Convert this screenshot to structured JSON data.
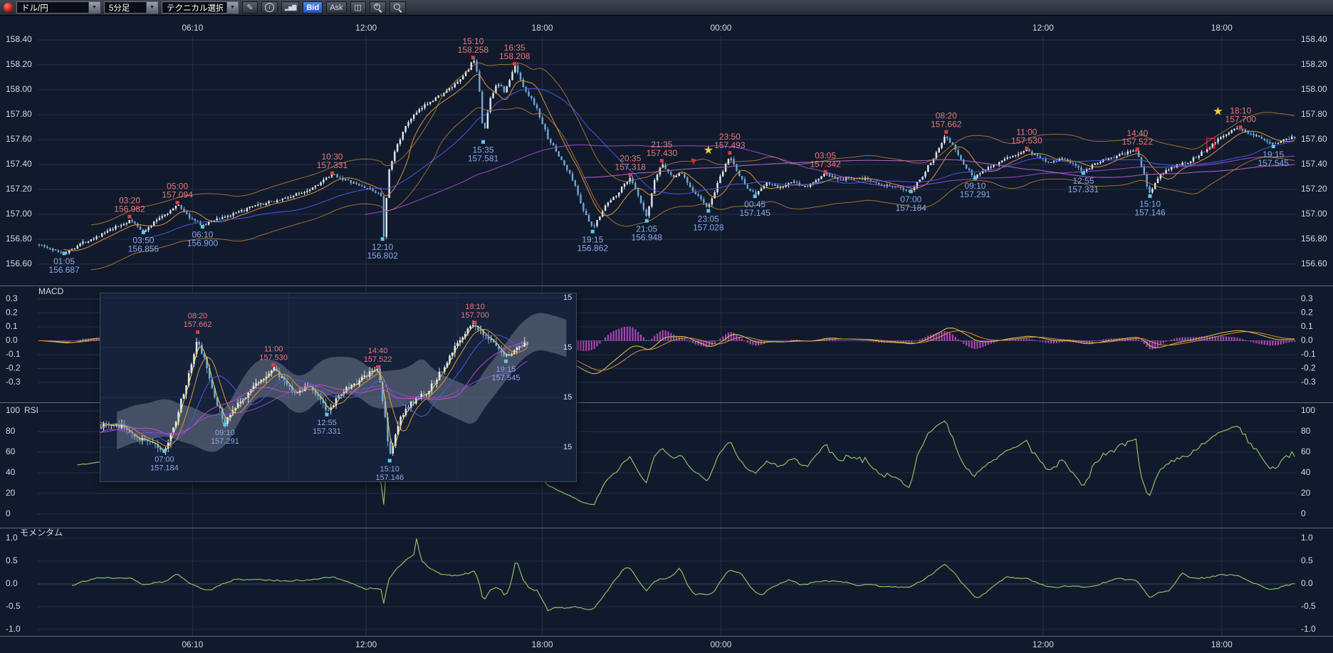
{
  "toolbar": {
    "pair": "ドル/円",
    "timeframe": "5分足",
    "technical": "テクニカル選択",
    "bid": "Bid",
    "ask": "Ask"
  },
  "icons": {
    "dropdown_arrow": "▼",
    "pencil": "✎",
    "info": "i",
    "bar_chart": "▂▅▇",
    "candle": "◫",
    "zoom_plus": "+"
  },
  "panels": {
    "macd": "MACD",
    "rsi": "RSI",
    "momentum": "モメンタム"
  },
  "axes": {
    "times": [
      {
        "label": "06:10",
        "f": 0.123
      },
      {
        "label": "12:00",
        "f": 0.261
      },
      {
        "label": "18:00",
        "f": 0.401
      },
      {
        "label": "00:00",
        "f": 0.543
      },
      {
        "label": "12:00",
        "f": 0.799
      },
      {
        "label": "18:00",
        "f": 0.941
      }
    ],
    "price_ticks": [
      "158.40",
      "158.20",
      "158.00",
      "157.80",
      "157.60",
      "157.40",
      "157.20",
      "157.00",
      "156.80",
      "156.60"
    ],
    "macd_ticks": [
      "0.3",
      "0.2",
      "0.1",
      "0.0",
      "-0.1",
      "-0.2",
      "-0.3"
    ],
    "rsi_ticks": [
      "100",
      "80",
      "60",
      "40",
      "20",
      "0"
    ],
    "momentum_ticks": [
      "1.0",
      "0.5",
      "0.0",
      "-0.5",
      "-1.0"
    ]
  },
  "chart_data": {
    "type": "candlestick",
    "symbol": "ドル/円",
    "interval": "5分足",
    "y_range": [
      156.6,
      158.4
    ],
    "price_path": [
      [
        0.0,
        156.76
      ],
      [
        0.008,
        156.72
      ],
      [
        0.021,
        156.69
      ],
      [
        0.032,
        156.76
      ],
      [
        0.05,
        156.84
      ],
      [
        0.062,
        156.9
      ],
      [
        0.073,
        156.95
      ],
      [
        0.08,
        156.89
      ],
      [
        0.084,
        156.86
      ],
      [
        0.095,
        156.97
      ],
      [
        0.105,
        157.03
      ],
      [
        0.111,
        157.08
      ],
      [
        0.118,
        156.99
      ],
      [
        0.125,
        156.94
      ],
      [
        0.131,
        156.91
      ],
      [
        0.14,
        156.96
      ],
      [
        0.155,
        157.0
      ],
      [
        0.17,
        157.06
      ],
      [
        0.185,
        157.1
      ],
      [
        0.2,
        157.14
      ],
      [
        0.215,
        157.2
      ],
      [
        0.228,
        157.28
      ],
      [
        0.234,
        157.32
      ],
      [
        0.245,
        157.27
      ],
      [
        0.258,
        157.22
      ],
      [
        0.268,
        157.18
      ],
      [
        0.2727,
        157.15
      ],
      [
        0.2745,
        156.81
      ],
      [
        0.278,
        157.32
      ],
      [
        0.285,
        157.56
      ],
      [
        0.295,
        157.76
      ],
      [
        0.31,
        157.9
      ],
      [
        0.322,
        157.97
      ],
      [
        0.334,
        158.06
      ],
      [
        0.342,
        158.17
      ],
      [
        0.346,
        158.24
      ],
      [
        0.35,
        158.08
      ],
      [
        0.354,
        157.62
      ],
      [
        0.359,
        157.92
      ],
      [
        0.365,
        158.06
      ],
      [
        0.371,
        157.98
      ],
      [
        0.379,
        158.19
      ],
      [
        0.386,
        158.02
      ],
      [
        0.395,
        157.88
      ],
      [
        0.405,
        157.62
      ],
      [
        0.415,
        157.45
      ],
      [
        0.425,
        157.28
      ],
      [
        0.434,
        157.02
      ],
      [
        0.441,
        156.88
      ],
      [
        0.45,
        157.06
      ],
      [
        0.46,
        157.16
      ],
      [
        0.466,
        157.24
      ],
      [
        0.471,
        157.3
      ],
      [
        0.478,
        157.12
      ],
      [
        0.484,
        156.97
      ],
      [
        0.49,
        157.26
      ],
      [
        0.496,
        157.41
      ],
      [
        0.504,
        157.3
      ],
      [
        0.512,
        157.33
      ],
      [
        0.52,
        157.2
      ],
      [
        0.527,
        157.12
      ],
      [
        0.533,
        157.05
      ],
      [
        0.541,
        157.26
      ],
      [
        0.55,
        157.47
      ],
      [
        0.557,
        157.32
      ],
      [
        0.564,
        157.22
      ],
      [
        0.57,
        157.16
      ],
      [
        0.58,
        157.25
      ],
      [
        0.59,
        157.21
      ],
      [
        0.6,
        157.26
      ],
      [
        0.612,
        157.22
      ],
      [
        0.62,
        157.28
      ],
      [
        0.626,
        157.33
      ],
      [
        0.636,
        157.27
      ],
      [
        0.648,
        157.3
      ],
      [
        0.66,
        157.28
      ],
      [
        0.672,
        157.24
      ],
      [
        0.683,
        157.21
      ],
      [
        0.694,
        157.19
      ],
      [
        0.703,
        157.3
      ],
      [
        0.712,
        157.45
      ],
      [
        0.722,
        157.64
      ],
      [
        0.729,
        157.53
      ],
      [
        0.737,
        157.39
      ],
      [
        0.745,
        157.3
      ],
      [
        0.756,
        157.38
      ],
      [
        0.768,
        157.43
      ],
      [
        0.778,
        157.48
      ],
      [
        0.786,
        157.52
      ],
      [
        0.794,
        157.47
      ],
      [
        0.804,
        157.42
      ],
      [
        0.816,
        157.45
      ],
      [
        0.824,
        157.4
      ],
      [
        0.831,
        157.34
      ],
      [
        0.843,
        157.42
      ],
      [
        0.857,
        157.46
      ],
      [
        0.868,
        157.5
      ],
      [
        0.874,
        157.51
      ],
      [
        0.879,
        157.36
      ],
      [
        0.884,
        157.16
      ],
      [
        0.892,
        157.31
      ],
      [
        0.903,
        157.38
      ],
      [
        0.915,
        157.42
      ],
      [
        0.927,
        157.5
      ],
      [
        0.938,
        157.6
      ],
      [
        0.948,
        157.66
      ],
      [
        0.956,
        157.69
      ],
      [
        0.965,
        157.65
      ],
      [
        0.974,
        157.61
      ],
      [
        0.982,
        157.56
      ],
      [
        0.991,
        157.6
      ],
      [
        1.0,
        157.62
      ]
    ],
    "annotations_high": [
      {
        "time": "03:20",
        "price": "156.982",
        "f": 0.073
      },
      {
        "time": "05:00",
        "price": "157.094",
        "f": 0.111
      },
      {
        "time": "10:30",
        "price": "157.331",
        "f": 0.234
      },
      {
        "time": "15:10",
        "price": "158.258",
        "f": 0.346
      },
      {
        "time": "16:35",
        "price": "158.208",
        "f": 0.379
      },
      {
        "time": "20:35",
        "price": "157.318",
        "f": 0.471
      },
      {
        "time": "21:35",
        "price": "157.430",
        "f": 0.496
      },
      {
        "time": "23:50",
        "price": "157.493",
        "f": 0.55
      },
      {
        "time": "03:05",
        "price": "157.342",
        "f": 0.626
      },
      {
        "time": "08:20",
        "price": "157.662",
        "f": 0.722
      },
      {
        "time": "11:00",
        "price": "157.530",
        "f": 0.786
      },
      {
        "time": "14:40",
        "price": "157.522",
        "f": 0.874
      },
      {
        "time": "18:10",
        "price": "157.700",
        "f": 0.956
      }
    ],
    "annotations_low": [
      {
        "time": "01:05",
        "price": "156.687",
        "f": 0.021
      },
      {
        "time": "03:50",
        "price": "156.855",
        "f": 0.084
      },
      {
        "time": "06:10",
        "price": "156.900",
        "f": 0.131
      },
      {
        "time": "12:10",
        "price": "156.802",
        "f": 0.274
      },
      {
        "time": "15:35",
        "price": "157.581",
        "f": 0.354
      },
      {
        "time": "19:15",
        "price": "156.862",
        "f": 0.441
      },
      {
        "time": "21:05",
        "price": "156.948",
        "f": 0.484
      },
      {
        "time": "23:05",
        "price": "157.028",
        "f": 0.533
      },
      {
        "time": "00:45",
        "price": "157.145",
        "f": 0.57
      },
      {
        "time": "07:00",
        "price": "157.184",
        "f": 0.694
      },
      {
        "time": "09:10",
        "price": "157.291",
        "f": 0.745
      },
      {
        "time": "12:55",
        "price": "157.331",
        "f": 0.831
      },
      {
        "time": "15:10",
        "price": "157.146",
        "f": 0.884
      },
      {
        "time": "19:15",
        "price": "157.545",
        "f": 0.982
      }
    ],
    "stars": [
      {
        "f": 0.533,
        "price": 157.51
      },
      {
        "f": 0.938,
        "price": 157.82
      }
    ],
    "flag": {
      "f": 0.521,
      "price": 157.4
    },
    "box": {
      "f": 0.932,
      "price": 157.57
    },
    "indicators": {
      "ma_periods": [
        10,
        40,
        120,
        200
      ],
      "envelope": {
        "period": 20,
        "offset": 0.18
      },
      "macd": {
        "fast": 12,
        "slow": 26,
        "signal": 9,
        "range": [
          -0.3,
          0.3
        ]
      },
      "rsi": {
        "period": 14,
        "range": [
          0,
          100
        ]
      },
      "momentum": {
        "period": 12,
        "range": [
          -1.0,
          1.0
        ]
      }
    }
  },
  "inset": {
    "fraction_range": [
      0.64,
      1.04
    ],
    "y_range": [
      157.08,
      157.8
    ],
    "axis_labels": [
      {
        "label": "15",
        "price": 157.8
      },
      {
        "label": "15",
        "price": 157.6
      },
      {
        "label": "15",
        "price": 157.4
      },
      {
        "label": "15",
        "price": 157.2
      }
    ],
    "annotations_high": [
      {
        "time": "08:20",
        "price": "157.662",
        "f": 0.722
      },
      {
        "time": "11:00",
        "price": "157.530",
        "f": 0.786
      },
      {
        "time": "14:40",
        "price": "157.522",
        "f": 0.874
      },
      {
        "time": "18:10",
        "price": "157.700",
        "f": 0.956
      }
    ],
    "annotations_low": [
      {
        "time": "07:00",
        "price": "157.184",
        "f": 0.694
      },
      {
        "time": "09:10",
        "price": "157.291",
        "f": 0.745
      },
      {
        "time": "12:55",
        "price": "157.331",
        "f": 0.831
      },
      {
        "time": "15:10",
        "price": "157.146",
        "f": 0.884
      },
      {
        "time": "19:15",
        "price": "157.545",
        "f": 0.982
      }
    ]
  },
  "colors": {
    "bg": "#111a2c",
    "grid": "#252f4a",
    "grid_strong": "#3a4670",
    "separator": "#5d6882",
    "axis_text": "#d0d8e8",
    "candle_up": "#e2eaf4",
    "candle_down": "#6fa8d4",
    "ma": [
      "#e0943c",
      "#4958e0",
      "#9a4ad0",
      "#c060c8"
    ],
    "envelope": "#cf8a34",
    "macd_hist": "#c44cc8",
    "macd_line": "#d8cc50",
    "macd_signal": "#e08c3c",
    "osc": "#8cbd62",
    "ann_high": "#e87878",
    "ann_low": "#86a8ea",
    "marker_high": "#d84040",
    "marker_low": "#5cc8ec",
    "star": "#f4d62a",
    "flag": "#e03030",
    "cloud": "rgba(150,158,170,0.38)",
    "inset_bg": "#16213a"
  }
}
